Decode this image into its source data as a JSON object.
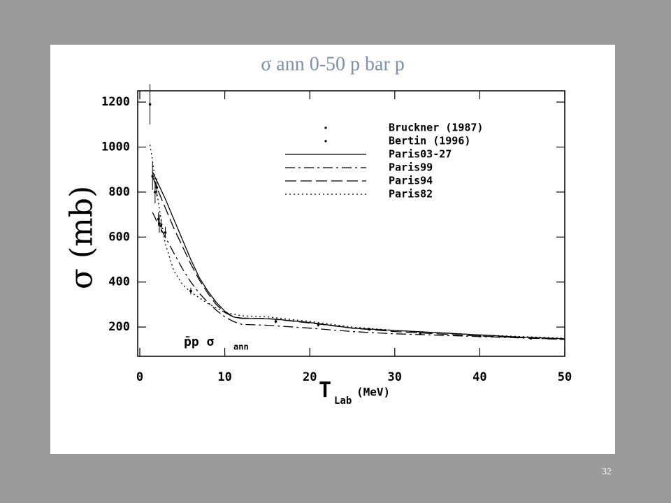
{
  "slide_number": "32",
  "chart_data": {
    "type": "line",
    "title": "σ ann 0-50 p bar p",
    "y_label": "σ (mb)",
    "x_label": "T",
    "x_label_subscript": "Lab",
    "x_label_unit": "(MeV)",
    "annotation": "p̄p σ",
    "annotation_subscript": "ann",
    "xlim": [
      0,
      50
    ],
    "ylim": [
      70,
      1250
    ],
    "xticks": [
      0,
      10,
      20,
      30,
      40,
      50
    ],
    "yticks": [
      200,
      400,
      600,
      800,
      1000,
      1200
    ],
    "grid": false,
    "legend": "upper right",
    "series": [
      {
        "name": "Bruckner (1987)",
        "color": "#000000",
        "style": "points",
        "x": [
          2,
          2.2,
          2.5,
          3,
          6,
          16,
          21,
          27,
          33,
          40,
          46
        ],
        "values": [
          820,
          680,
          650,
          620,
          360,
          225,
          210,
          190,
          172,
          160,
          150
        ],
        "errors": [
          40,
          30,
          30,
          25,
          15,
          8,
          8,
          6,
          5,
          5,
          5
        ]
      },
      {
        "name": "Bertin (1996)",
        "color": "#000000",
        "style": "points",
        "x": [
          1.2,
          1.5,
          1.8,
          2.3
        ],
        "values": [
          1190,
          870,
          800,
          660
        ],
        "errors": [
          90,
          60,
          50,
          40
        ]
      },
      {
        "name": "Paris03-27",
        "color": "#000000",
        "style": "solid",
        "x": [
          1.5,
          2,
          3,
          4,
          5,
          6,
          7,
          8,
          9,
          10,
          11,
          12,
          14,
          16,
          20,
          25,
          30,
          35,
          40,
          45,
          50
        ],
        "values": [
          890,
          850,
          770,
          680,
          590,
          500,
          420,
          360,
          310,
          270,
          245,
          238,
          238,
          235,
          220,
          195,
          185,
          175,
          165,
          155,
          148
        ]
      },
      {
        "name": "Paris99",
        "color": "#000000",
        "style": "dashdot",
        "x": [
          1.5,
          2,
          3,
          4,
          5,
          6,
          7,
          8,
          9,
          10,
          11,
          12,
          15,
          20,
          25,
          30,
          40,
          50
        ],
        "values": [
          710,
          670,
          600,
          530,
          460,
          400,
          350,
          310,
          275,
          245,
          225,
          212,
          208,
          195,
          180,
          170,
          158,
          145
        ]
      },
      {
        "name": "Paris94",
        "color": "#000000",
        "style": "dash",
        "x": [
          1.5,
          2,
          3,
          4,
          5,
          6,
          7,
          8,
          9,
          10,
          11,
          12,
          15,
          20,
          25,
          30,
          40,
          50
        ],
        "values": [
          870,
          820,
          730,
          640,
          560,
          480,
          410,
          350,
          300,
          265,
          245,
          240,
          238,
          218,
          195,
          180,
          160,
          145
        ]
      },
      {
        "name": "Paris82",
        "color": "#000000",
        "style": "dot",
        "x": [
          1.2,
          1.5,
          2,
          2.5,
          3,
          4,
          5,
          6,
          7,
          8,
          9,
          10,
          12,
          15,
          20,
          25,
          30,
          40,
          50
        ],
        "values": [
          1010,
          940,
          800,
          680,
          570,
          450,
          390,
          355,
          330,
          305,
          285,
          265,
          250,
          245,
          225,
          200,
          185,
          165,
          150
        ]
      }
    ]
  }
}
